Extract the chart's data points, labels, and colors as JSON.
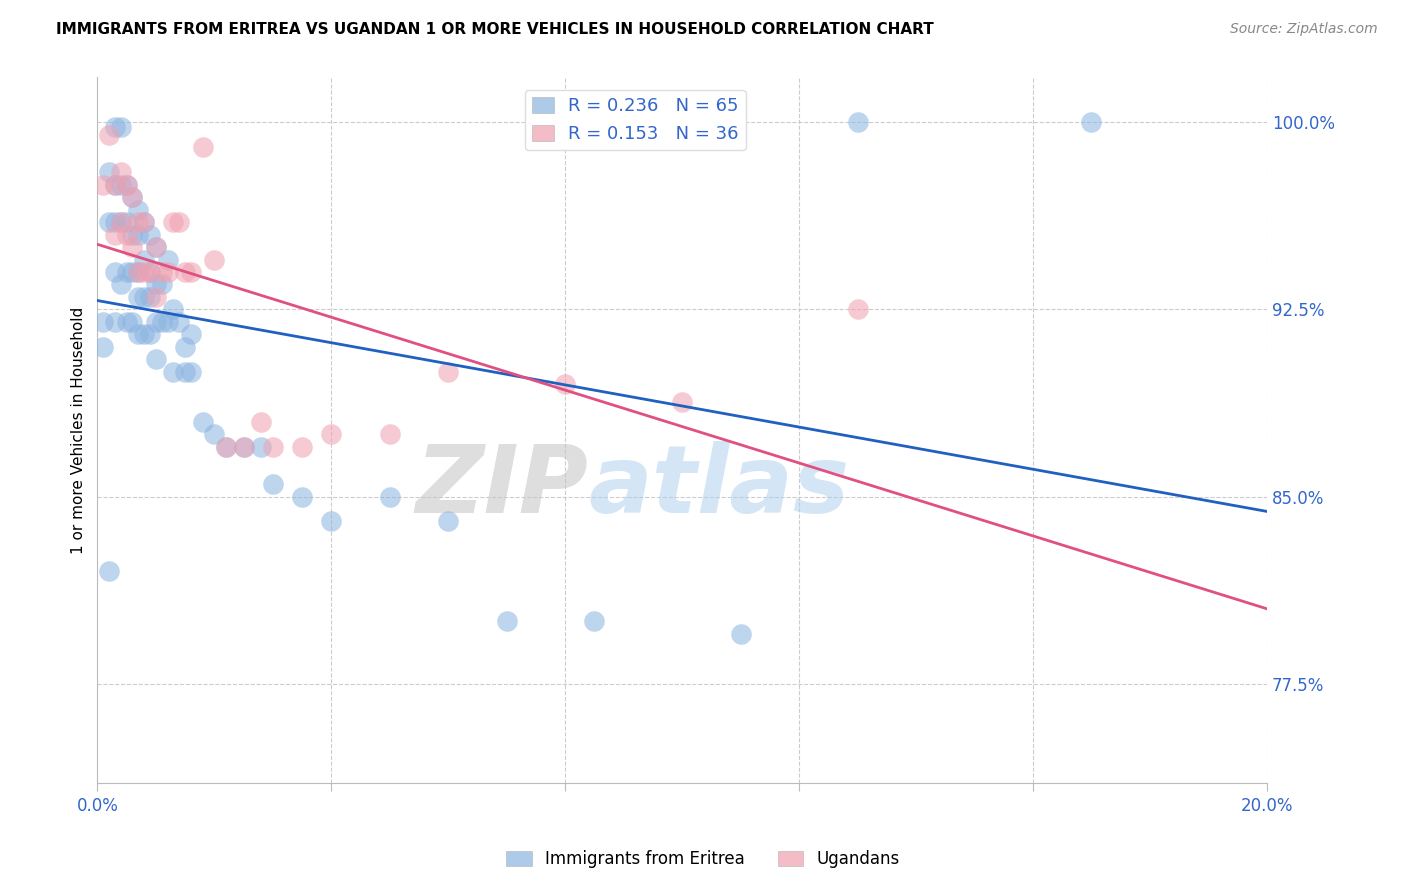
{
  "title": "IMMIGRANTS FROM ERITREA VS UGANDAN 1 OR MORE VEHICLES IN HOUSEHOLD CORRELATION CHART",
  "source": "Source: ZipAtlas.com",
  "ylabel": "1 or more Vehicles in Household",
  "x_min": 0.0,
  "x_max": 0.2,
  "y_min": 0.735,
  "y_max": 1.018,
  "x_ticks": [
    0.0,
    0.04,
    0.08,
    0.12,
    0.16,
    0.2
  ],
  "y_ticks": [
    0.775,
    0.85,
    0.925,
    1.0
  ],
  "y_tick_labels": [
    "77.5%",
    "85.0%",
    "92.5%",
    "100.0%"
  ],
  "blue_R": 0.236,
  "blue_N": 65,
  "pink_R": 0.153,
  "pink_N": 36,
  "blue_color": "#8ab4e0",
  "pink_color": "#f0a0b0",
  "blue_line_color": "#2060c0",
  "pink_line_color": "#e05080",
  "watermark_zip": "ZIP",
  "watermark_atlas": "atlas",
  "legend_label_blue": "Immigrants from Eritrea",
  "legend_label_pink": "Ugandans",
  "blue_x": [
    0.001,
    0.001,
    0.002,
    0.002,
    0.002,
    0.003,
    0.003,
    0.003,
    0.003,
    0.003,
    0.004,
    0.004,
    0.004,
    0.004,
    0.005,
    0.005,
    0.005,
    0.005,
    0.006,
    0.006,
    0.006,
    0.006,
    0.007,
    0.007,
    0.007,
    0.007,
    0.007,
    0.008,
    0.008,
    0.008,
    0.008,
    0.009,
    0.009,
    0.009,
    0.009,
    0.01,
    0.01,
    0.01,
    0.01,
    0.011,
    0.011,
    0.012,
    0.012,
    0.013,
    0.013,
    0.014,
    0.015,
    0.015,
    0.016,
    0.016,
    0.018,
    0.02,
    0.022,
    0.025,
    0.028,
    0.03,
    0.035,
    0.04,
    0.05,
    0.06,
    0.07,
    0.085,
    0.11,
    0.13,
    0.17
  ],
  "blue_y": [
    0.92,
    0.91,
    0.98,
    0.96,
    0.82,
    0.998,
    0.975,
    0.96,
    0.94,
    0.92,
    0.998,
    0.975,
    0.96,
    0.935,
    0.975,
    0.96,
    0.94,
    0.92,
    0.97,
    0.955,
    0.94,
    0.92,
    0.965,
    0.955,
    0.94,
    0.93,
    0.915,
    0.96,
    0.945,
    0.93,
    0.915,
    0.955,
    0.94,
    0.93,
    0.915,
    0.95,
    0.935,
    0.92,
    0.905,
    0.935,
    0.92,
    0.945,
    0.92,
    0.925,
    0.9,
    0.92,
    0.91,
    0.9,
    0.915,
    0.9,
    0.88,
    0.875,
    0.87,
    0.87,
    0.87,
    0.855,
    0.85,
    0.84,
    0.85,
    0.84,
    0.8,
    0.8,
    0.795,
    1.0,
    1.0
  ],
  "pink_x": [
    0.001,
    0.002,
    0.003,
    0.003,
    0.004,
    0.004,
    0.005,
    0.005,
    0.006,
    0.006,
    0.007,
    0.007,
    0.008,
    0.008,
    0.009,
    0.01,
    0.01,
    0.011,
    0.012,
    0.013,
    0.014,
    0.015,
    0.016,
    0.018,
    0.02,
    0.022,
    0.025,
    0.028,
    0.03,
    0.035,
    0.04,
    0.05,
    0.06,
    0.08,
    0.1,
    0.13
  ],
  "pink_y": [
    0.975,
    0.995,
    0.975,
    0.955,
    0.98,
    0.96,
    0.975,
    0.955,
    0.97,
    0.95,
    0.96,
    0.94,
    0.96,
    0.94,
    0.94,
    0.95,
    0.93,
    0.94,
    0.94,
    0.96,
    0.96,
    0.94,
    0.94,
    0.99,
    0.945,
    0.87,
    0.87,
    0.88,
    0.87,
    0.87,
    0.875,
    0.875,
    0.9,
    0.895,
    0.888,
    0.925
  ]
}
